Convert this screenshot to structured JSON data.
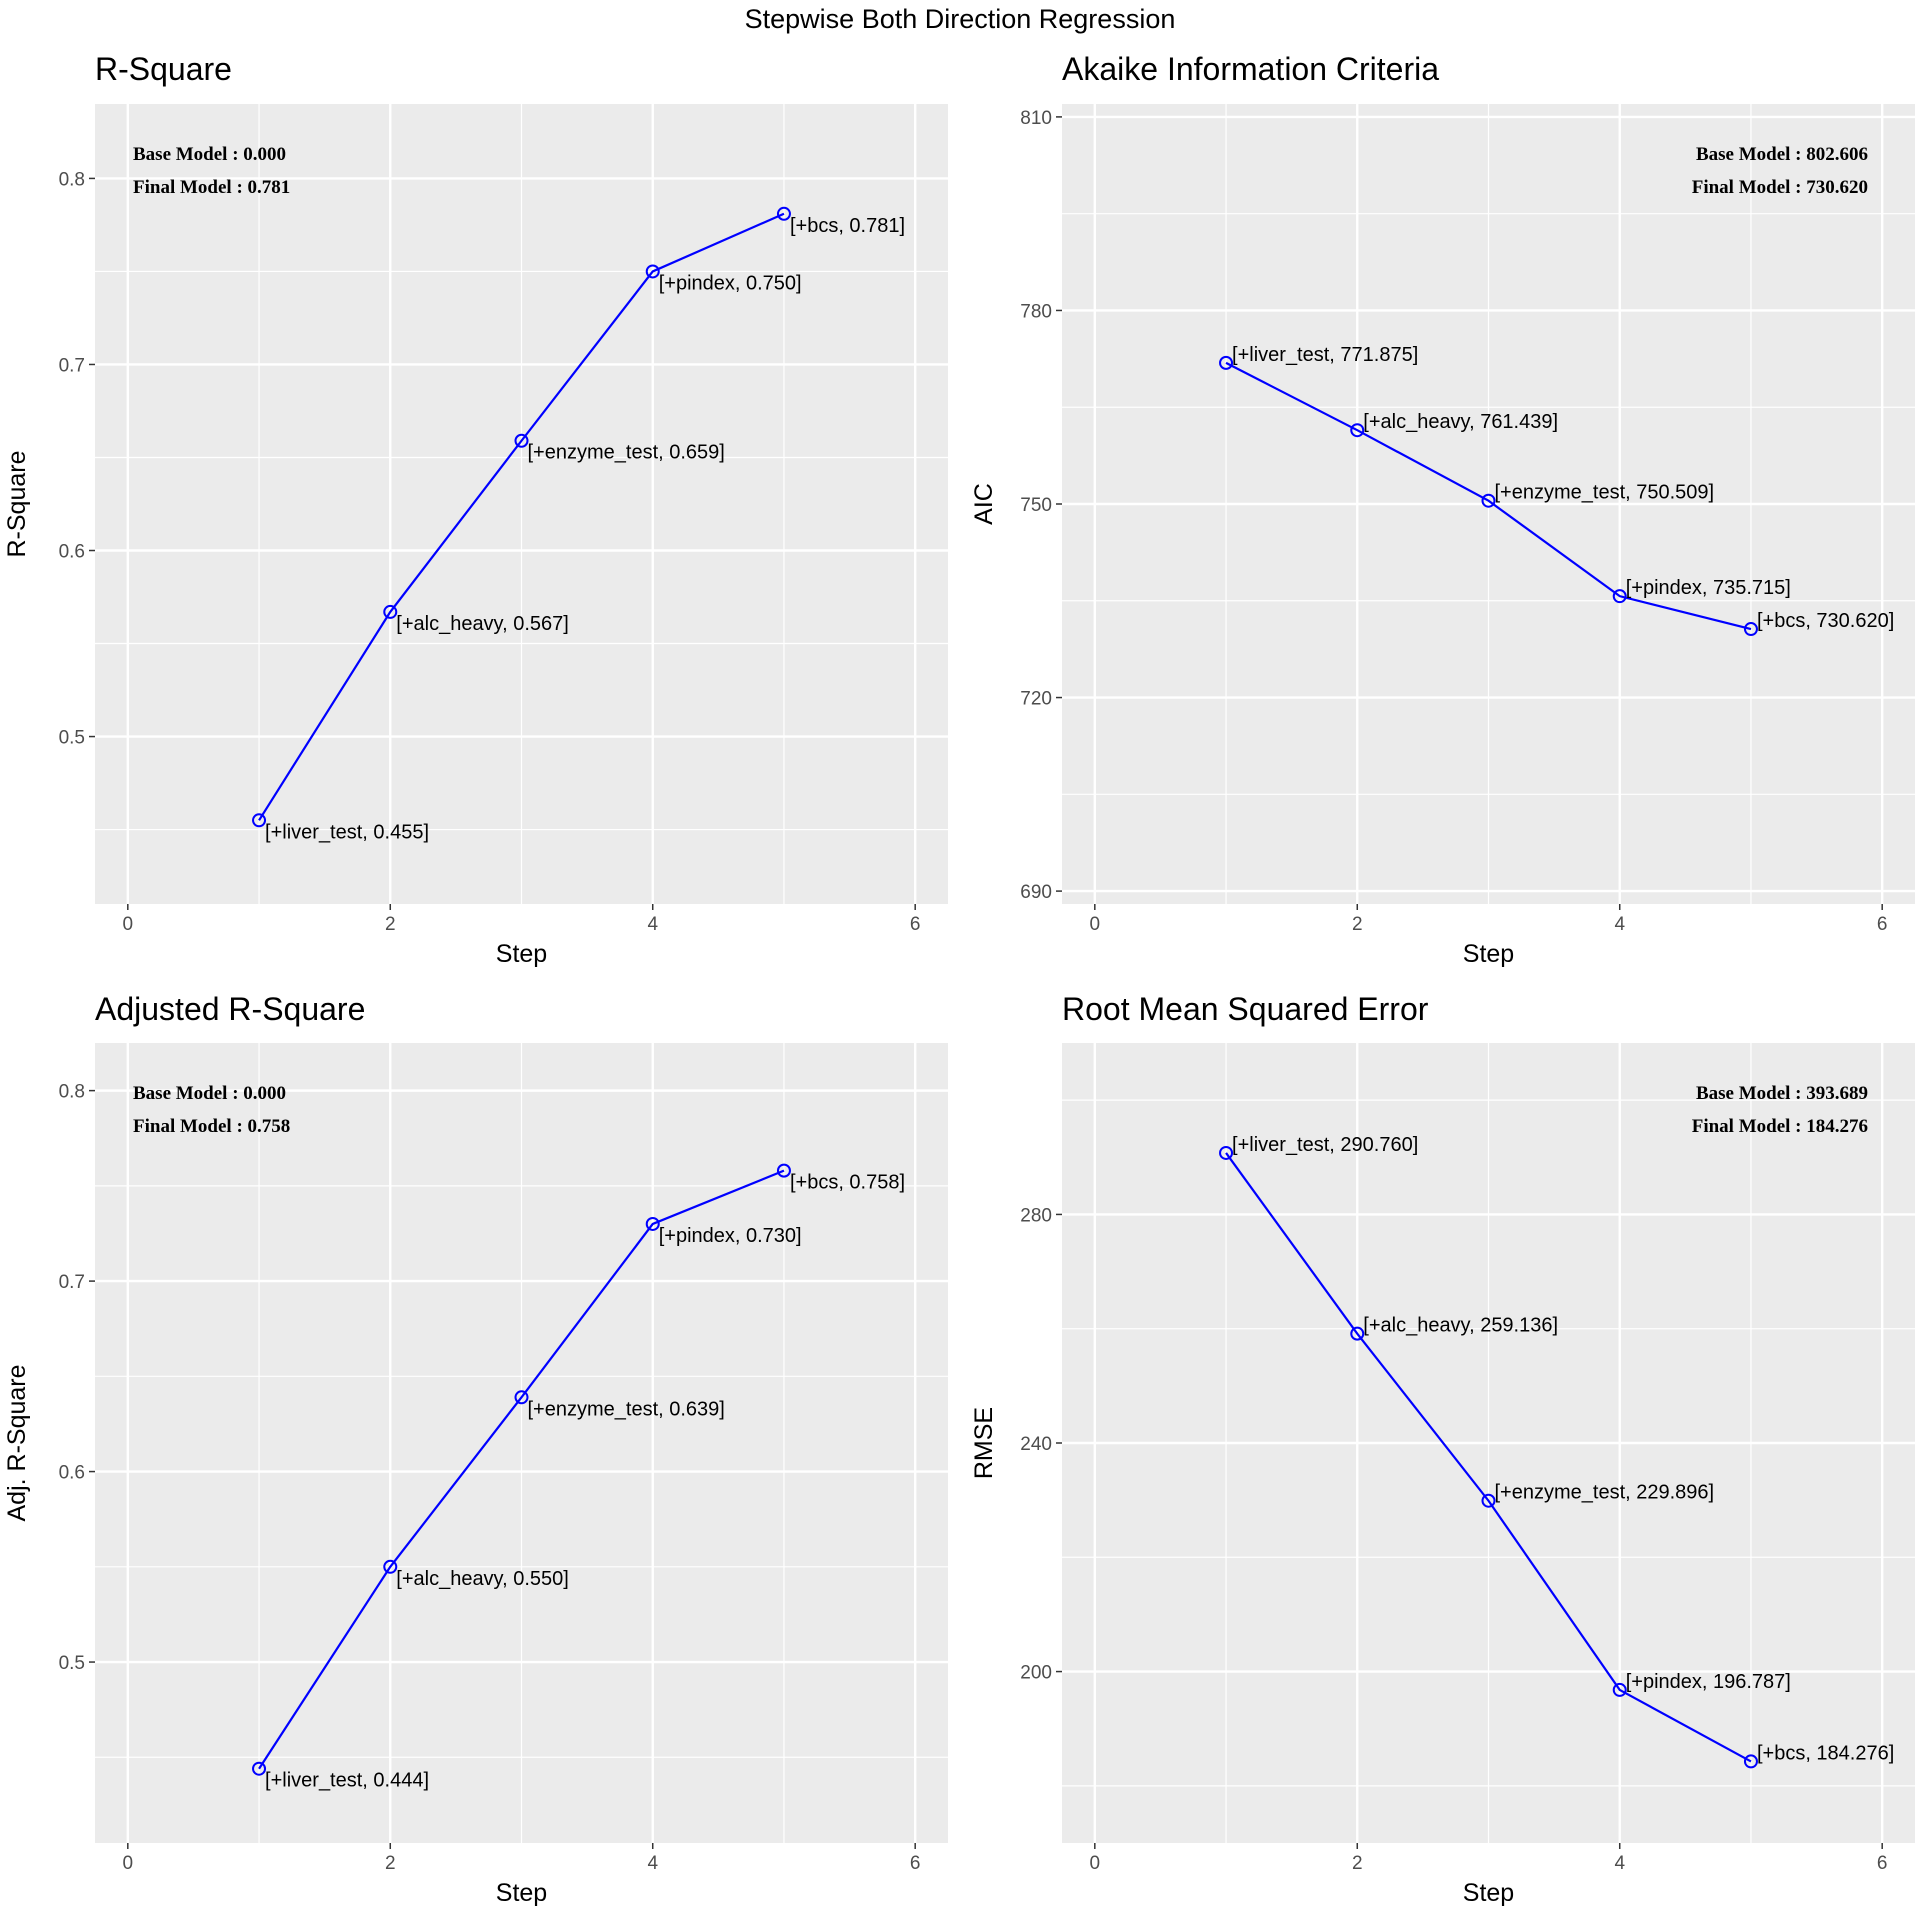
{
  "figure": {
    "title": "Stepwise Both Direction Regression"
  },
  "chart_data": [
    {
      "type": "line",
      "title": "R-Square",
      "xlabel": "Step",
      "ylabel": "R-Square",
      "xlim": [
        -0.25,
        6.25
      ],
      "ylim": [
        0.41,
        0.84
      ],
      "x_ticks": [
        0,
        2,
        4,
        6
      ],
      "y_ticks": [
        0.5,
        0.6,
        0.7,
        0.8
      ],
      "color": "#0000ff",
      "x": [
        1,
        2,
        3,
        4,
        5
      ],
      "y": [
        0.455,
        0.567,
        0.659,
        0.75,
        0.781
      ],
      "point_labels": [
        "[+liver_test, 0.455]",
        "[+alc_heavy, 0.567]",
        "[+enzyme_test, 0.659]",
        "[+pindex, 0.750]",
        "[+bcs, 0.781]"
      ],
      "label_position": "below",
      "summary_position": "top-left",
      "summary": [
        "Base Model  : 0.000",
        "Final Model : 0.781"
      ]
    },
    {
      "type": "line",
      "title": "Akaike Information Criteria",
      "xlabel": "Step",
      "ylabel": "AIC",
      "xlim": [
        -0.25,
        6.25
      ],
      "ylim": [
        688,
        812
      ],
      "x_ticks": [
        0,
        2,
        4,
        6
      ],
      "y_ticks": [
        690,
        720,
        750,
        780,
        810
      ],
      "color": "#0000ff",
      "x": [
        1,
        2,
        3,
        4,
        5
      ],
      "y": [
        771.875,
        761.439,
        750.509,
        735.715,
        730.62
      ],
      "point_labels": [
        "[+liver_test, 771.875]",
        "[+alc_heavy, 761.439]",
        "[+enzyme_test, 750.509]",
        "[+pindex, 735.715]",
        "[+bcs, 730.620]"
      ],
      "label_position": "above",
      "summary_position": "top-right",
      "summary": [
        "Base Model  : 802.606",
        "Final Model : 730.620"
      ]
    },
    {
      "type": "line",
      "title": "Adjusted R-Square",
      "xlabel": "Step",
      "ylabel": "Adj. R-Square",
      "xlim": [
        -0.25,
        6.25
      ],
      "ylim": [
        0.405,
        0.825
      ],
      "x_ticks": [
        0,
        2,
        4,
        6
      ],
      "y_ticks": [
        0.5,
        0.6,
        0.7,
        0.8
      ],
      "color": "#0000ff",
      "x": [
        1,
        2,
        3,
        4,
        5
      ],
      "y": [
        0.444,
        0.55,
        0.639,
        0.73,
        0.758
      ],
      "point_labels": [
        "[+liver_test, 0.444]",
        "[+alc_heavy, 0.550]",
        "[+enzyme_test, 0.639]",
        "[+pindex, 0.730]",
        "[+bcs, 0.758]"
      ],
      "label_position": "below",
      "summary_position": "top-left",
      "summary": [
        "Base Model  : 0.000",
        "Final Model : 0.758"
      ]
    },
    {
      "type": "line",
      "title": "Root Mean Squared Error",
      "xlabel": "Step",
      "ylabel": "RMSE",
      "xlim": [
        -0.25,
        6.25
      ],
      "ylim": [
        170,
        310
      ],
      "x_ticks": [
        0,
        2,
        4,
        6
      ],
      "y_ticks": [
        200,
        240,
        280
      ],
      "color": "#0000ff",
      "x": [
        1,
        2,
        3,
        4,
        5
      ],
      "y": [
        290.76,
        259.136,
        229.896,
        196.787,
        184.276
      ],
      "point_labels": [
        "[+liver_test, 290.760]",
        "[+alc_heavy, 259.136]",
        "[+enzyme_test, 229.896]",
        "[+pindex, 196.787]",
        "[+bcs, 184.276]"
      ],
      "label_position": "above",
      "summary_position": "top-right",
      "summary": [
        "Base Model  : 393.689",
        "Final Model : 184.276"
      ]
    }
  ]
}
